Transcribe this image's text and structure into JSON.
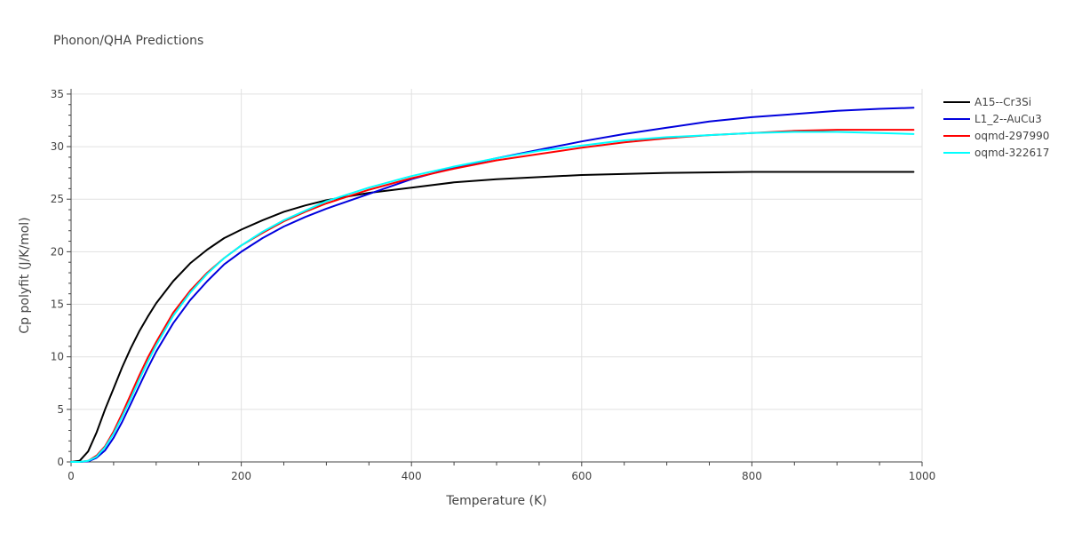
{
  "chart_data": {
    "type": "line",
    "title": "Phonon/QHA Predictions",
    "xlabel": "Temperature (K)",
    "ylabel": "Cp polyfit (J/K/mol)",
    "xlim": [
      0,
      1000
    ],
    "ylim": [
      0,
      35.5
    ],
    "x_ticks": [
      0,
      200,
      400,
      600,
      800,
      1000
    ],
    "y_ticks": [
      0,
      5,
      10,
      15,
      20,
      25,
      30,
      35
    ],
    "grid": true,
    "legend_position": "top-right",
    "series": [
      {
        "name": "A15--Cr3Si",
        "color": "#000000",
        "x": [
          0,
          10,
          20,
          30,
          40,
          50,
          60,
          70,
          80,
          90,
          100,
          120,
          140,
          160,
          180,
          200,
          225,
          250,
          275,
          300,
          350,
          400,
          450,
          500,
          600,
          700,
          800,
          900,
          990
        ],
        "y": [
          0,
          0.1,
          1.0,
          2.8,
          5.0,
          7.0,
          9.0,
          10.8,
          12.4,
          13.8,
          15.1,
          17.2,
          18.9,
          20.2,
          21.3,
          22.1,
          23.0,
          23.8,
          24.4,
          24.9,
          25.6,
          26.1,
          26.6,
          26.9,
          27.3,
          27.5,
          27.6,
          27.6,
          27.6
        ]
      },
      {
        "name": "L1_2--AuCu3",
        "color": "#0000dd",
        "x": [
          0,
          10,
          20,
          30,
          40,
          50,
          60,
          70,
          80,
          90,
          100,
          120,
          140,
          160,
          180,
          200,
          225,
          250,
          275,
          300,
          350,
          400,
          450,
          500,
          550,
          600,
          650,
          700,
          750,
          800,
          850,
          900,
          950,
          990
        ],
        "y": [
          0,
          0,
          0.05,
          0.4,
          1.1,
          2.3,
          3.8,
          5.5,
          7.2,
          8.9,
          10.5,
          13.2,
          15.4,
          17.2,
          18.8,
          20.0,
          21.3,
          22.4,
          23.3,
          24.1,
          25.5,
          26.9,
          28.0,
          28.9,
          29.7,
          30.5,
          31.2,
          31.8,
          32.4,
          32.8,
          33.1,
          33.4,
          33.6,
          33.7
        ]
      },
      {
        "name": "oqmd-297990",
        "color": "#ff0000",
        "x": [
          0,
          10,
          20,
          30,
          40,
          50,
          60,
          70,
          80,
          90,
          100,
          120,
          140,
          160,
          180,
          200,
          225,
          250,
          275,
          300,
          350,
          400,
          450,
          500,
          550,
          600,
          650,
          700,
          750,
          800,
          850,
          900,
          950,
          990
        ],
        "y": [
          0,
          0,
          0.1,
          0.6,
          1.5,
          2.9,
          4.6,
          6.4,
          8.2,
          9.9,
          11.4,
          14.2,
          16.3,
          18.0,
          19.4,
          20.6,
          21.8,
          22.9,
          23.8,
          24.6,
          25.9,
          27.0,
          27.9,
          28.7,
          29.3,
          29.9,
          30.4,
          30.8,
          31.1,
          31.3,
          31.5,
          31.6,
          31.6,
          31.6
        ]
      },
      {
        "name": "oqmd-322617",
        "color": "#00ffff",
        "x": [
          0,
          10,
          20,
          30,
          40,
          50,
          60,
          70,
          80,
          90,
          100,
          120,
          140,
          160,
          180,
          200,
          225,
          250,
          275,
          300,
          350,
          400,
          450,
          500,
          550,
          600,
          650,
          700,
          750,
          800,
          850,
          900,
          950,
          990
        ],
        "y": [
          0,
          0,
          0.1,
          0.5,
          1.4,
          2.7,
          4.3,
          6.0,
          7.8,
          9.5,
          11.1,
          13.9,
          16.1,
          17.9,
          19.4,
          20.6,
          21.9,
          23.0,
          23.9,
          24.8,
          26.1,
          27.2,
          28.1,
          28.9,
          29.6,
          30.1,
          30.6,
          30.9,
          31.1,
          31.3,
          31.4,
          31.4,
          31.3,
          31.2
        ]
      }
    ]
  }
}
